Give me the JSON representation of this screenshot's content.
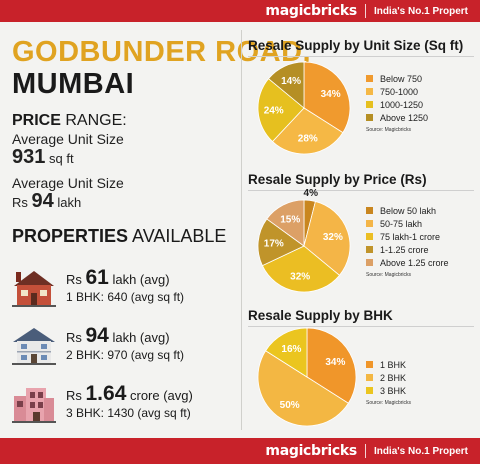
{
  "brand": {
    "logo": "magicbricks",
    "tagline": "India's No.1 Propert"
  },
  "location": {
    "line1": "GODBUNDER ROAD,",
    "line2": "MUMBAI"
  },
  "price_range": {
    "heading_bold": "PRICE",
    "heading_rest": " RANGE:",
    "unit_size_label": "Average Unit Size",
    "unit_size_value": "931",
    "unit_size_unit": " sq ft",
    "price_label": "Average Unit Size",
    "price_prefix": "Rs ",
    "price_value": "94",
    "price_unit": " lakh"
  },
  "properties": {
    "heading_bold": "PROPERTIES",
    "heading_rest": " AVAILABLE",
    "items": [
      {
        "prefix": "Rs ",
        "value": "61",
        "suffix": " lakh (avg)",
        "detail": "1 BHK: 640 (avg sq ft)"
      },
      {
        "prefix": "Rs ",
        "value": "94",
        "suffix": " lakh (avg)",
        "detail": "2 BHK: 970 (avg sq ft)"
      },
      {
        "prefix": "Rs ",
        "value": "1.64",
        "suffix": " crore (avg)",
        "detail": "3 BHK: 1430 (avg sq ft)"
      }
    ]
  },
  "source_note": "Source: Magicbricks",
  "chart_data": [
    {
      "type": "pie",
      "title": "Resale Supply by Unit Size (Sq ft)",
      "categories": [
        "Below 750",
        "750-1000",
        "1000-1250",
        "Above 1250"
      ],
      "values": [
        34,
        28,
        24,
        14
      ],
      "labels": [
        "34%",
        "28%",
        "24%",
        "14%"
      ],
      "colors": [
        "#f09a2e",
        "#f5b845",
        "#e6c01f",
        "#b58f24"
      ]
    },
    {
      "type": "pie",
      "title": "Resale Supply by Price (Rs)",
      "categories": [
        "Below 50 lakh",
        "50-75 lakh",
        "75 lakh-1 crore",
        "1-1.25 crore",
        "Above 1.25 crore"
      ],
      "values": [
        4,
        32,
        32,
        17,
        15
      ],
      "labels": [
        "4%",
        "32%",
        "32%",
        "17%",
        "15%"
      ],
      "colors": [
        "#c9861f",
        "#f4b547",
        "#ebbe23",
        "#c0942a",
        "#dca066"
      ]
    },
    {
      "type": "pie",
      "title": "Resale Supply by BHK",
      "categories": [
        "1 BHK",
        "2 BHK",
        "3 BHK"
      ],
      "values": [
        34,
        50,
        16
      ],
      "labels": [
        "34%",
        "50%",
        "16%"
      ],
      "colors": [
        "#f0962a",
        "#f3b743",
        "#ebc51f"
      ]
    }
  ]
}
